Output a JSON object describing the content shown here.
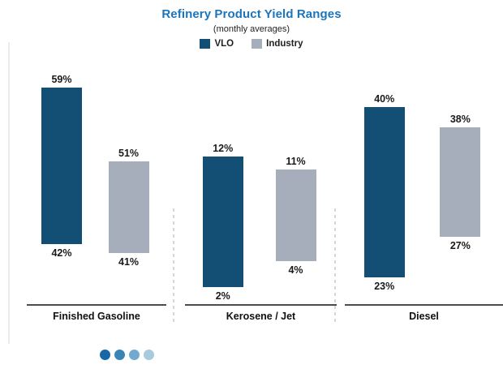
{
  "header": {
    "title": "Refinery Product Yield Ranges",
    "subtitle": "(monthly averages)",
    "title_color": "#1b75bc"
  },
  "legend": {
    "items": [
      {
        "label": "VLO",
        "color": "#134e75"
      },
      {
        "label": "Industry",
        "color": "#a6aebc"
      }
    ]
  },
  "chart_data": {
    "type": "bar",
    "subtype": "floating-range-columns",
    "title": "Refinery Product Yield Ranges",
    "subtitle": "(monthly averages)",
    "value_suffix": "%",
    "categories": [
      "Finished Gasoline",
      "Kerosene / Jet",
      "Diesel"
    ],
    "series": [
      {
        "name": "VLO",
        "color": "#134e75",
        "ranges": [
          [
            42,
            59
          ],
          [
            2,
            12
          ],
          [
            23,
            40
          ]
        ]
      },
      {
        "name": "Industry",
        "color": "#a6aebc",
        "ranges": [
          [
            41,
            51
          ],
          [
            4,
            11
          ],
          [
            27,
            38
          ]
        ]
      }
    ],
    "labels_shown": [
      "59%",
      "42%",
      "51%",
      "41%",
      "12%",
      "2%",
      "11%",
      "4%",
      "40%",
      "23%",
      "38%",
      "27%"
    ],
    "layout": {
      "legend_position": "top",
      "grid": false,
      "independent_panel_scales": true,
      "panel_axis_ranges": [
        [
          35.5,
          61
        ],
        [
          0.7,
          18.7
        ],
        [
          20.3,
          43.8
        ]
      ]
    }
  },
  "footer": {
    "dots": [
      "#1668a7",
      "#3a85b8",
      "#74a9cf",
      "#a8cade"
    ]
  }
}
